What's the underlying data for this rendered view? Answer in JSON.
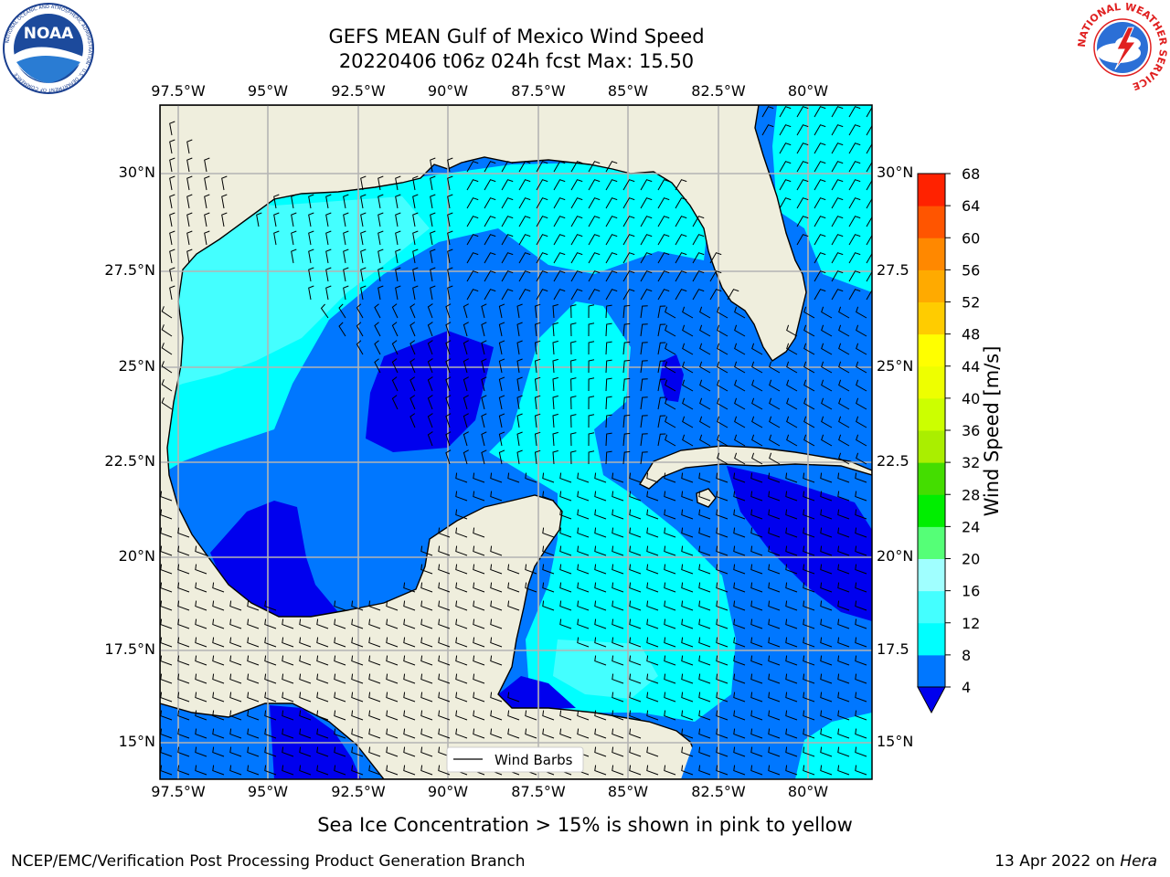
{
  "title": {
    "line1": "GEFS MEAN Gulf of Mexico Wind Speed",
    "line2": "20220406 t06z 024h fcst   Max: 15.50"
  },
  "logos": {
    "left": "NOAA",
    "left_ring_text": "NATIONAL OCEANIC AND ATMOSPHERIC ADMINISTRATION · U.S. DEPARTMENT OF COMMERCE",
    "right_ring_text": "NATIONAL WEATHER SERVICE"
  },
  "axes": {
    "lon_labels": [
      "97.5°W",
      "95°W",
      "92.5°W",
      "90°W",
      "87.5°W",
      "85°W",
      "82.5°W",
      "80°W"
    ],
    "lat_labels_left": [
      "30°N",
      "27.5°N",
      "25°N",
      "22.5°N",
      "20°N",
      "17.5°N",
      "15°N"
    ],
    "lat_labels_right": [
      "30°N",
      "27.5",
      "25°N",
      "22.5",
      "20°N",
      "17.5",
      "15°N"
    ]
  },
  "legend": {
    "wind_barbs": "Wind Barbs"
  },
  "colorbar": {
    "label": "Wind Speed [m/s]",
    "ticks": [
      "4",
      "8",
      "12",
      "16",
      "20",
      "24",
      "28",
      "32",
      "36",
      "40",
      "44",
      "48",
      "52",
      "56",
      "60",
      "64",
      "68"
    ],
    "colors": [
      "#0000ee",
      "#0077ff",
      "#00ffff",
      "#44ffff",
      "#a0ffff",
      "#55ff77",
      "#00ee00",
      "#44dd00",
      "#aaee00",
      "#ccff00",
      "#eeff00",
      "#ffff00",
      "#ffcc00",
      "#ffaa00",
      "#ff8800",
      "#ff5500",
      "#ff2200",
      "#ff0000"
    ]
  },
  "map_colors": {
    "land": "#efeedd",
    "speed_lt4": "#0000ee",
    "speed_4_8": "#0077ff",
    "speed_8_12": "#00ffff",
    "speed_12_16": "#44ffff"
  },
  "caption": "Sea Ice Concentration > 15% is shown in pink to yellow",
  "footer": {
    "left": "NCEP/EMC/Verification Post Processing Product Generation Branch",
    "right_date": "13 Apr 2022 on ",
    "right_host": "Hera"
  }
}
